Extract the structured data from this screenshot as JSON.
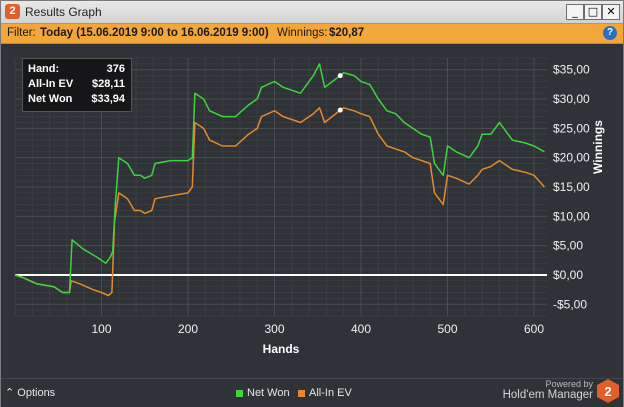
{
  "window": {
    "icon_label": "2",
    "title": "Results Graph",
    "buttons": {
      "minimize": "_",
      "maximize": "□",
      "close": "✕"
    }
  },
  "filter": {
    "prefix": "Filter:",
    "value": "Today (15.06.2019 9:00 to 16.06.2019 9:00)",
    "winnings_label": "Winnings:",
    "winnings_value": "$20,87",
    "help_label": "?"
  },
  "tooltip": {
    "rows": [
      {
        "key": "Hand:",
        "value": "376"
      },
      {
        "key": "All-In EV",
        "value": "$28,11"
      },
      {
        "key": "Net Won",
        "value": "$33,94"
      }
    ]
  },
  "bottom": {
    "options_label": "⌃  Options",
    "brand_line1": "Powered by",
    "brand_line2": "Hold'em Manager",
    "brand_logo_text": "2"
  },
  "colors": {
    "net_won": "#3fd43f",
    "allin_ev": "#e58a2c",
    "zero_line": "#ffffff",
    "background": "#2f3236",
    "grid": "#4a4e53"
  },
  "chart_data": {
    "type": "line",
    "xlabel": "Hands",
    "ylabel": "Winnings",
    "xlim": [
      0,
      615
    ],
    "ylim": [
      -7,
      37
    ],
    "x_ticks": [
      100,
      200,
      300,
      400,
      500,
      600
    ],
    "y_ticks": [
      -5,
      0,
      5,
      10,
      15,
      20,
      25,
      30,
      35
    ],
    "y_tick_labels": [
      "-$5,00",
      "$0,00",
      "$5,00",
      "$10,00",
      "$15,00",
      "$20,00",
      "$25,00",
      "$30,00",
      "$35,00"
    ],
    "grid": true,
    "legend_position": "bottom-center",
    "highlight_hand": 376,
    "series": [
      {
        "name": "Net Won",
        "color": "#3fd43f",
        "points": [
          [
            0,
            0
          ],
          [
            10,
            -0.5
          ],
          [
            25,
            -1.5
          ],
          [
            45,
            -2
          ],
          [
            55,
            -3
          ],
          [
            63,
            -3
          ],
          [
            65,
            3
          ],
          [
            66,
            6
          ],
          [
            78,
            4.5
          ],
          [
            95,
            3
          ],
          [
            105,
            2
          ],
          [
            110,
            3
          ],
          [
            113,
            4
          ],
          [
            116,
            12
          ],
          [
            120,
            20
          ],
          [
            130,
            19
          ],
          [
            138,
            17
          ],
          [
            145,
            17
          ],
          [
            150,
            16.5
          ],
          [
            158,
            17
          ],
          [
            162,
            19
          ],
          [
            180,
            19.5
          ],
          [
            200,
            19.5
          ],
          [
            205,
            20
          ],
          [
            208,
            31
          ],
          [
            218,
            30
          ],
          [
            225,
            28
          ],
          [
            240,
            27
          ],
          [
            255,
            27
          ],
          [
            270,
            29
          ],
          [
            280,
            30
          ],
          [
            285,
            32
          ],
          [
            300,
            33
          ],
          [
            310,
            32
          ],
          [
            330,
            31
          ],
          [
            345,
            34
          ],
          [
            352,
            36
          ],
          [
            358,
            32
          ],
          [
            376,
            34
          ],
          [
            380,
            34.5
          ],
          [
            392,
            34
          ],
          [
            400,
            33
          ],
          [
            410,
            32.5
          ],
          [
            420,
            30
          ],
          [
            430,
            28
          ],
          [
            440,
            27.5
          ],
          [
            450,
            26
          ],
          [
            460,
            25
          ],
          [
            470,
            24
          ],
          [
            480,
            23.5
          ],
          [
            485,
            19
          ],
          [
            490,
            18
          ],
          [
            495,
            17
          ],
          [
            500,
            22
          ],
          [
            510,
            21
          ],
          [
            525,
            20
          ],
          [
            535,
            22
          ],
          [
            540,
            24
          ],
          [
            550,
            24
          ],
          [
            560,
            26
          ],
          [
            575,
            23
          ],
          [
            590,
            22.5
          ],
          [
            600,
            22
          ],
          [
            612,
            21
          ]
        ]
      },
      {
        "name": "All-In EV",
        "color": "#e58a2c",
        "points": [
          [
            0,
            0
          ],
          [
            10,
            -0.5
          ],
          [
            25,
            -1.5
          ],
          [
            45,
            -2
          ],
          [
            55,
            -3
          ],
          [
            63,
            -3
          ],
          [
            65,
            -1
          ],
          [
            75,
            -1.5
          ],
          [
            90,
            -2.5
          ],
          [
            100,
            -3
          ],
          [
            108,
            -3.5
          ],
          [
            112,
            -3
          ],
          [
            115,
            9
          ],
          [
            120,
            14
          ],
          [
            130,
            13
          ],
          [
            138,
            11
          ],
          [
            145,
            11
          ],
          [
            150,
            10.5
          ],
          [
            158,
            11
          ],
          [
            162,
            13
          ],
          [
            180,
            13.5
          ],
          [
            200,
            14
          ],
          [
            205,
            15
          ],
          [
            208,
            26
          ],
          [
            218,
            25
          ],
          [
            225,
            23
          ],
          [
            240,
            22
          ],
          [
            255,
            22
          ],
          [
            270,
            24
          ],
          [
            280,
            25
          ],
          [
            285,
            27
          ],
          [
            300,
            28
          ],
          [
            310,
            27
          ],
          [
            330,
            26
          ],
          [
            345,
            27.5
          ],
          [
            352,
            28.5
          ],
          [
            358,
            26
          ],
          [
            376,
            28.11
          ],
          [
            380,
            28.5
          ],
          [
            392,
            28
          ],
          [
            400,
            27.5
          ],
          [
            410,
            27
          ],
          [
            420,
            24
          ],
          [
            430,
            22
          ],
          [
            440,
            21.5
          ],
          [
            450,
            21
          ],
          [
            460,
            20
          ],
          [
            470,
            19.5
          ],
          [
            480,
            19
          ],
          [
            485,
            14
          ],
          [
            490,
            13
          ],
          [
            495,
            12
          ],
          [
            500,
            17
          ],
          [
            510,
            16.5
          ],
          [
            525,
            15.5
          ],
          [
            535,
            17
          ],
          [
            540,
            18
          ],
          [
            550,
            18.5
          ],
          [
            560,
            19.5
          ],
          [
            575,
            18
          ],
          [
            590,
            17.5
          ],
          [
            600,
            17
          ],
          [
            612,
            15
          ]
        ]
      }
    ]
  }
}
